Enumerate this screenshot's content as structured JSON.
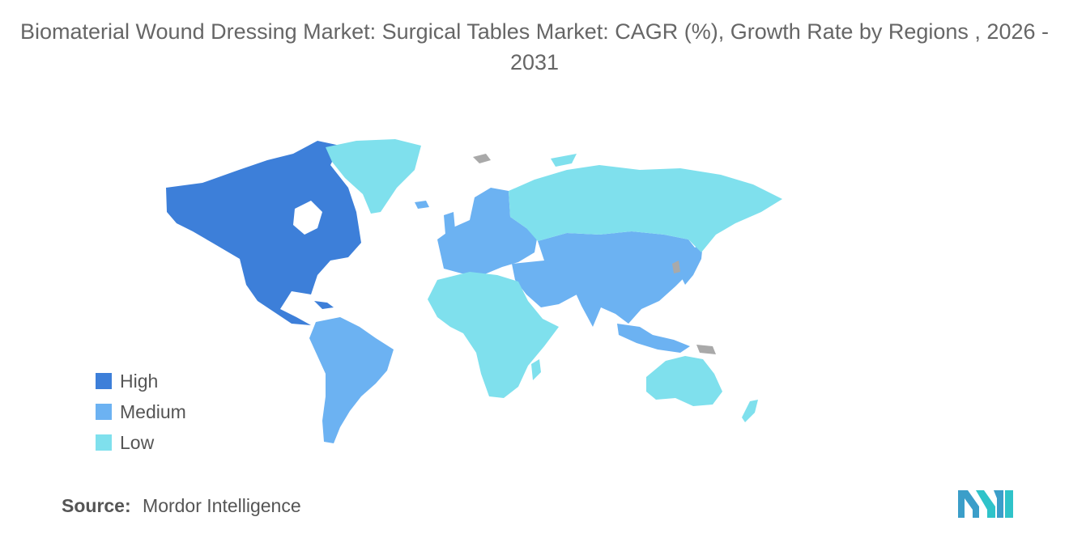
{
  "title": "Biomaterial Wound Dressing Market: Surgical Tables Market: CAGR (%), Growth Rate by Regions , 2026 - 2031",
  "legend": [
    {
      "label": "High",
      "color": "#3d7fd9"
    },
    {
      "label": "Medium",
      "color": "#6cb2f2"
    },
    {
      "label": "Low",
      "color": "#7fe0ed"
    }
  ],
  "no_data_color": "#a9a9a9",
  "regions": {
    "north_america": "High",
    "south_america": "Medium",
    "europe": "Medium",
    "middle_east": "Medium",
    "asia": "Medium",
    "russia": "Low",
    "greenland": "Low",
    "africa": "Low",
    "australia_nz": "Low"
  },
  "source": {
    "key": "Source:",
    "value": "Mordor Intelligence"
  },
  "logo": {
    "icon": "mordor-intelligence-logo",
    "color": "#3b9ec9"
  }
}
